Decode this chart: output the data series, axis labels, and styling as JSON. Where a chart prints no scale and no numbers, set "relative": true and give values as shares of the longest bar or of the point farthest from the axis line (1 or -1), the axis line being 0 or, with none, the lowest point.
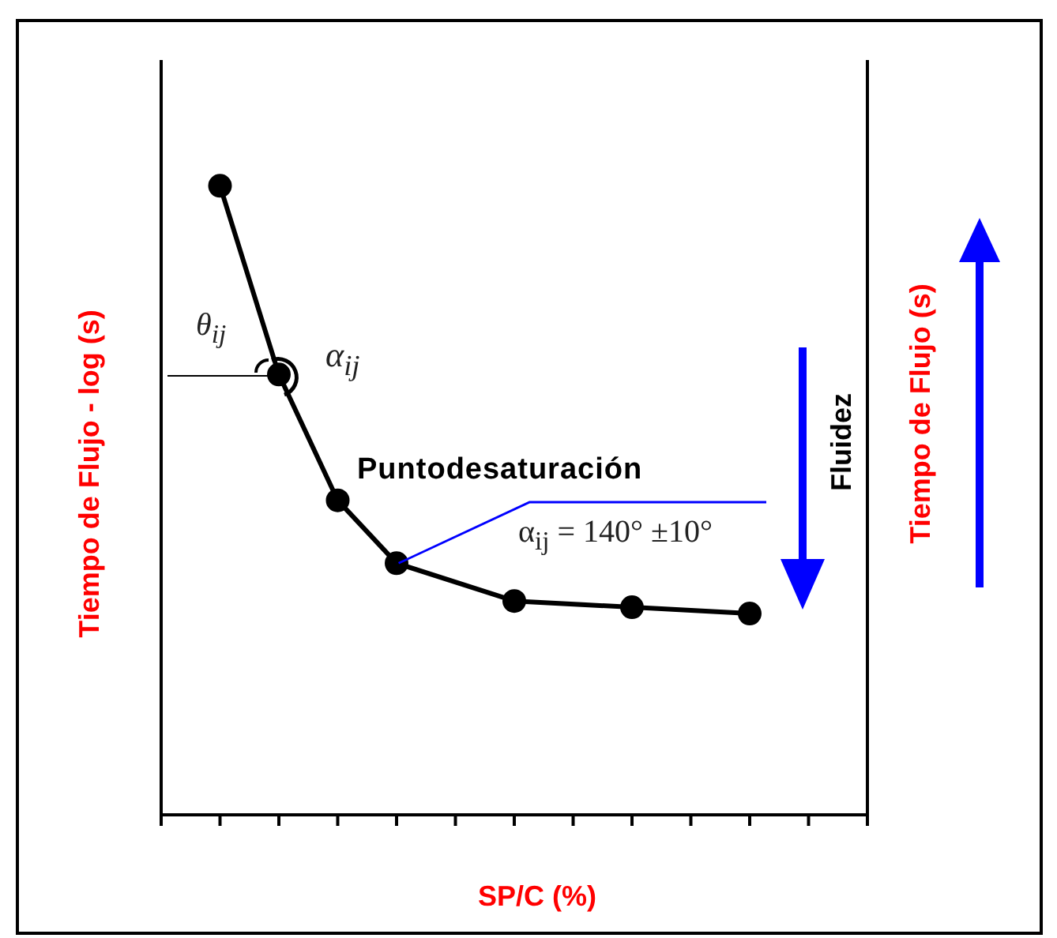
{
  "chart_data": {
    "type": "line",
    "relative": true,
    "xlabel": "SP/C (%)",
    "ylabel": "Tiempo de Flujo - log (s)",
    "y2label": "Tiempo de Flujo (s)",
    "categories": [
      null,
      null,
      null,
      null,
      null,
      null,
      null,
      null,
      null,
      null
    ],
    "series": [
      {
        "color": "#000000",
        "values": [
          1,
          0.7,
          0.5,
          0.4,
          null,
          0.34,
          null,
          0.33,
          null,
          0.32
        ]
      }
    ],
    "marker": "circle",
    "line_style": "solid",
    "grid": false,
    "legend": false,
    "tick_labels": false,
    "annotations": [
      "Puntodesaturación",
      "α$_{ij}$ = 140° ±10°",
      "θ$_{ij}$",
      "α$_{ij}$",
      "Fluidez"
    ]
  }
}
